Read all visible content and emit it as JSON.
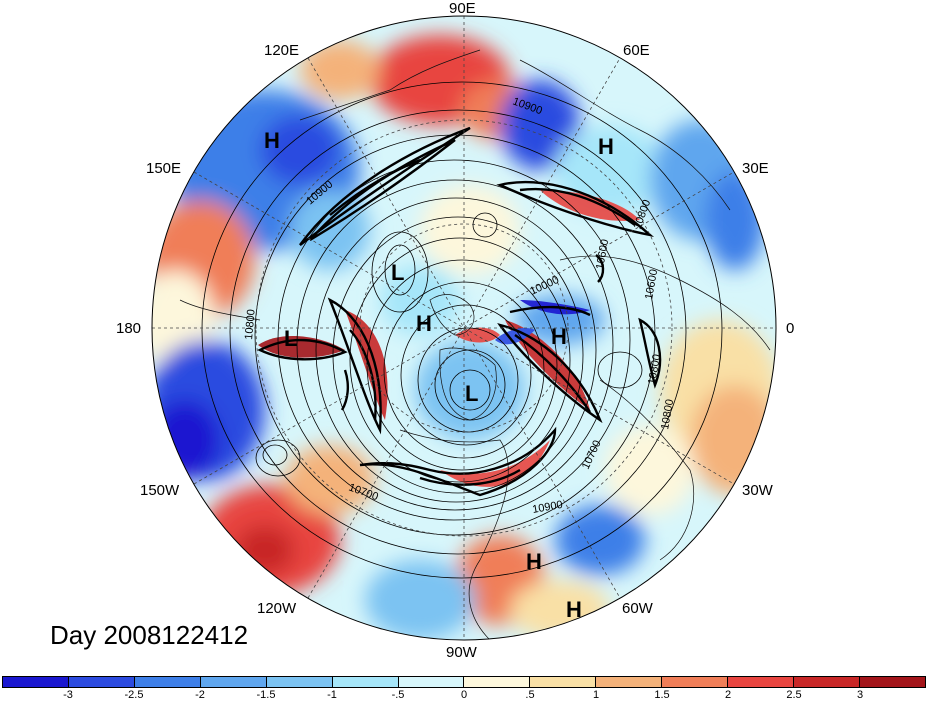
{
  "map": {
    "projection": "north-polar-stereographic",
    "longitude_labels": [
      "90E",
      "60E",
      "30E",
      "0",
      "30W",
      "60W",
      "90W",
      "120W",
      "150W",
      "180",
      "150E",
      "120E"
    ],
    "highs_lows": [
      "H",
      "H",
      "L",
      "L",
      "H",
      "H",
      "L",
      "H",
      "H"
    ],
    "contour_labels": [
      "10900",
      "10900",
      "10800",
      "10600",
      "10800",
      "10800",
      "10700",
      "10700",
      "10900",
      "10000",
      "10600",
      "10800"
    ],
    "colors": {
      "deep_blue": "#2020d0",
      "blue": "#3a6ee8",
      "mid_blue": "#5aa0ee",
      "light_blue": "#8fd0f5",
      "pale_blue": "#c9f0fb",
      "cream": "#fbf6d8",
      "tan": "#f7d99a",
      "orange": "#f2a36c",
      "red": "#e8453c",
      "dark_red": "#b51e1e",
      "line": "#000000"
    }
  },
  "date_label": "Day 2008122412",
  "colorbar": {
    "colors": [
      "#1a17d0",
      "#2c4be0",
      "#3e7fe8",
      "#5fa6ee",
      "#7cc3f2",
      "#a6e6f9",
      "#d7f6fb",
      "#fdf7dc",
      "#f9e0a6",
      "#f4b27a",
      "#f07e58",
      "#e84540",
      "#c82727",
      "#a3151a"
    ],
    "tick_labels": [
      "-3",
      "-2.5",
      "-2",
      "-1.5",
      "-1",
      "-.5",
      "0",
      ".5",
      "1",
      "1.5",
      "2",
      "2.5",
      "3"
    ]
  }
}
